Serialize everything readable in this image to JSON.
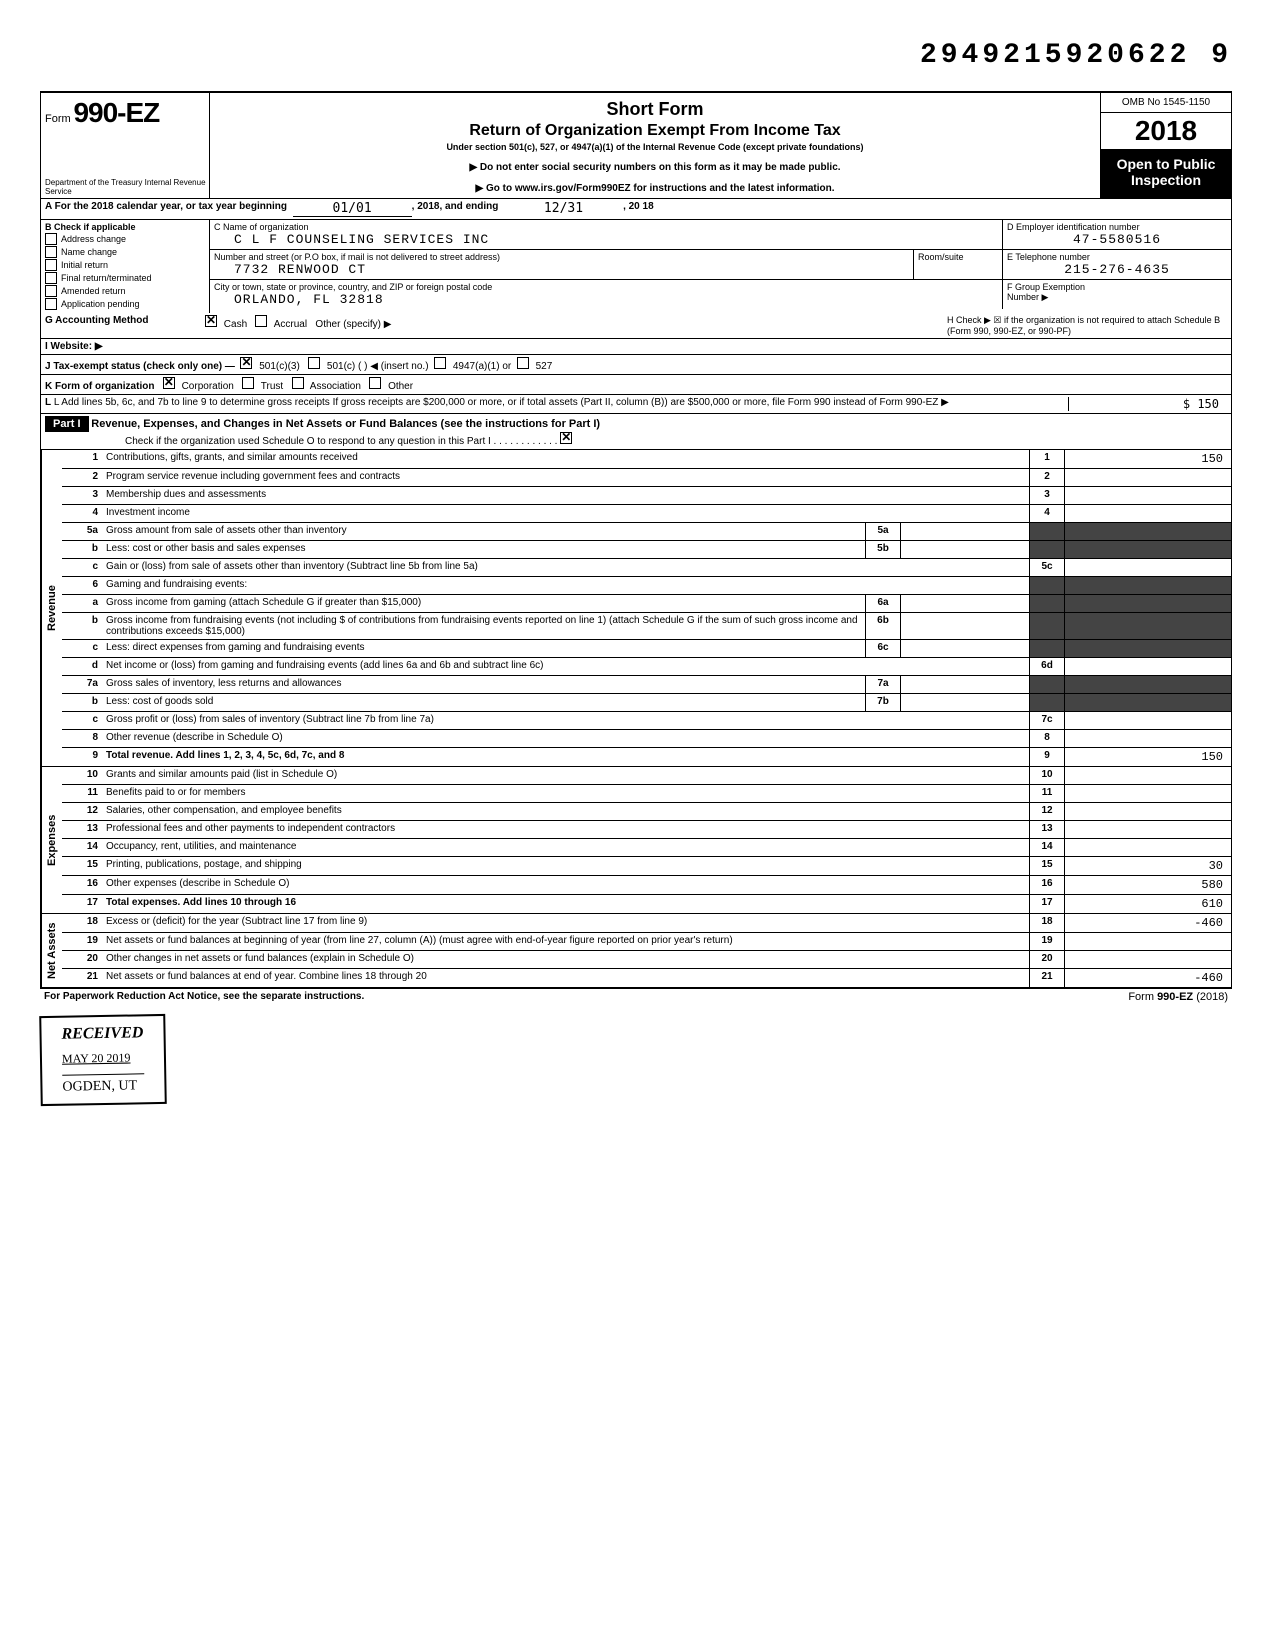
{
  "dln": "2949215920622 9",
  "form": {
    "prefix": "Form",
    "number": "990-EZ",
    "dept": "Department of the Treasury\nInternal Revenue Service"
  },
  "header": {
    "title1": "Short Form",
    "title2": "Return of Organization Exempt From Income Tax",
    "subtitle": "Under section 501(c), 527, or 4947(a)(1) of the Internal Revenue Code (except private foundations)",
    "note1": "▶ Do not enter social security numbers on this form as it may be made public.",
    "note2": "▶ Go to www.irs.gov/Form990EZ for instructions and the latest information.",
    "omb": "OMB No 1545-1150",
    "year": "2018",
    "inspection": "Open to Public Inspection"
  },
  "lineA": {
    "text": "A For the 2018 calendar year, or tax year beginning",
    "begin": "01/01",
    "mid": ", 2018, and ending",
    "end": "12/31",
    "year": ", 20 18"
  },
  "sectionB": {
    "label": "B Check if applicable",
    "items": [
      "Address change",
      "Name change",
      "Initial return",
      "Final return/terminated",
      "Amended return",
      "Application pending"
    ]
  },
  "org": {
    "nameLabel": "C Name of organization",
    "name": "C L F COUNSELING SERVICES INC",
    "addrLabel": "Number and street (or P.O box, if mail is not delivered to street address)",
    "addr": "7732 RENWOOD CT",
    "roomLabel": "Room/suite",
    "cityLabel": "City or town, state or province, country, and ZIP or foreign postal code",
    "city": "ORLANDO, FL 32818"
  },
  "einLabel": "D Employer identification number",
  "ein": "47-5580516",
  "telLabel": "E Telephone number",
  "tel": "215-276-4635",
  "groupLabel": "F Group Exemption",
  "groupLabel2": "Number ▶",
  "lineG": {
    "label": "G Accounting Method",
    "cash": "Cash",
    "accrual": "Accrual",
    "other": "Other (specify) ▶"
  },
  "lineH": "H Check ▶ ☒ if the organization is not required to attach Schedule B (Form 990, 990-EZ, or 990-PF)",
  "lineI": "I Website: ▶",
  "lineJ": "J Tax-exempt status (check only one) —",
  "lineJ_501c3": "501(c)(3)",
  "lineJ_501c": "501(c) (",
  "lineJ_insert": ") ◀ (insert no.)",
  "lineJ_4947": "4947(a)(1) or",
  "lineJ_527": "527",
  "lineK": "K Form of organization",
  "lineK_corp": "Corporation",
  "lineK_trust": "Trust",
  "lineK_assoc": "Association",
  "lineK_other": "Other",
  "lineL": "L Add lines 5b, 6c, and 7b to line 9 to determine gross receipts If gross receipts are $200,000 or more, or if total assets (Part II, column (B)) are $500,000 or more, file Form 990 instead of Form 990-EZ",
  "lineL_val": "150",
  "part1": {
    "label": "Part I",
    "title": "Revenue, Expenses, and Changes in Net Assets or Fund Balances (see the instructions for Part I)",
    "check": "Check if the organization used Schedule O to respond to any question in this Part I"
  },
  "revenue": [
    {
      "n": "1",
      "d": "Contributions, gifts, grants, and similar amounts received",
      "ln": "1",
      "v": "150"
    },
    {
      "n": "2",
      "d": "Program service revenue including government fees and contracts",
      "ln": "2",
      "v": ""
    },
    {
      "n": "3",
      "d": "Membership dues and assessments",
      "ln": "3",
      "v": ""
    },
    {
      "n": "4",
      "d": "Investment income",
      "ln": "4",
      "v": ""
    },
    {
      "n": "5a",
      "d": "Gross amount from sale of assets other than inventory",
      "sub": "5a"
    },
    {
      "n": "b",
      "d": "Less: cost or other basis and sales expenses",
      "sub": "5b"
    },
    {
      "n": "c",
      "d": "Gain or (loss) from sale of assets other than inventory (Subtract line 5b from line 5a)",
      "ln": "5c",
      "v": ""
    },
    {
      "n": "6",
      "d": "Gaming and fundraising events:"
    },
    {
      "n": "a",
      "d": "Gross income from gaming (attach Schedule G if greater than $15,000)",
      "sub": "6a"
    },
    {
      "n": "b",
      "d": "Gross income from fundraising events (not including $           of contributions from fundraising events reported on line 1) (attach Schedule G if the sum of such gross income and contributions exceeds $15,000)",
      "sub": "6b"
    },
    {
      "n": "c",
      "d": "Less: direct expenses from gaming and fundraising events",
      "sub": "6c"
    },
    {
      "n": "d",
      "d": "Net income or (loss) from gaming and fundraising events (add lines 6a and 6b and subtract line 6c)",
      "ln": "6d",
      "v": ""
    },
    {
      "n": "7a",
      "d": "Gross sales of inventory, less returns and allowances",
      "sub": "7a"
    },
    {
      "n": "b",
      "d": "Less: cost of goods sold",
      "sub": "7b"
    },
    {
      "n": "c",
      "d": "Gross profit or (loss) from sales of inventory (Subtract line 7b from line 7a)",
      "ln": "7c",
      "v": ""
    },
    {
      "n": "8",
      "d": "Other revenue (describe in Schedule O)",
      "ln": "8",
      "v": ""
    },
    {
      "n": "9",
      "d": "Total revenue. Add lines 1, 2, 3, 4, 5c, 6d, 7c, and 8",
      "ln": "9",
      "v": "150",
      "bold": true
    }
  ],
  "expenses": [
    {
      "n": "10",
      "d": "Grants and similar amounts paid (list in Schedule O)",
      "ln": "10",
      "v": ""
    },
    {
      "n": "11",
      "d": "Benefits paid to or for members",
      "ln": "11",
      "v": ""
    },
    {
      "n": "12",
      "d": "Salaries, other compensation, and employee benefits",
      "ln": "12",
      "v": ""
    },
    {
      "n": "13",
      "d": "Professional fees and other payments to independent contractors",
      "ln": "13",
      "v": ""
    },
    {
      "n": "14",
      "d": "Occupancy, rent, utilities, and maintenance",
      "ln": "14",
      "v": ""
    },
    {
      "n": "15",
      "d": "Printing, publications, postage, and shipping",
      "ln": "15",
      "v": "30"
    },
    {
      "n": "16",
      "d": "Other expenses (describe in Schedule O)",
      "ln": "16",
      "v": "580"
    },
    {
      "n": "17",
      "d": "Total expenses. Add lines 10 through 16",
      "ln": "17",
      "v": "610",
      "bold": true
    }
  ],
  "netassets": [
    {
      "n": "18",
      "d": "Excess or (deficit) for the year (Subtract line 17 from line 9)",
      "ln": "18",
      "v": "-460"
    },
    {
      "n": "19",
      "d": "Net assets or fund balances at beginning of year (from line 27, column (A)) (must agree with end-of-year figure reported on prior year's return)",
      "ln": "19",
      "v": ""
    },
    {
      "n": "20",
      "d": "Other changes in net assets or fund balances (explain in Schedule O)",
      "ln": "20",
      "v": ""
    },
    {
      "n": "21",
      "d": "Net assets or fund balances at end of year. Combine lines 18 through 20",
      "ln": "21",
      "v": "-460"
    }
  ],
  "footer": {
    "left": "For Paperwork Reduction Act Notice, see the separate instructions.",
    "right": "Form 990-EZ (2018)"
  },
  "stamp": {
    "received": "RECEIVED",
    "date": "MAY 20 2019",
    "ogden": "OGDEN, UT"
  },
  "labels": {
    "revenue": "Revenue",
    "expenses": "Expenses",
    "netassets": "Net Assets"
  }
}
